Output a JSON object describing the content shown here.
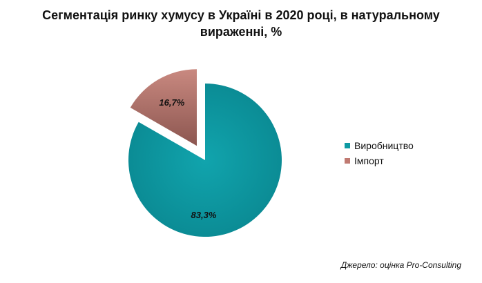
{
  "chart_data": {
    "type": "pie",
    "title": "Сегментація ринку хумусу в Україні в 2020 році, в натуральному вираженні, %",
    "categories": [
      "Виробництво",
      "Імпорт"
    ],
    "values": [
      83.3,
      16.7
    ],
    "data_labels": [
      "83,3%",
      "16,7%"
    ],
    "colors": [
      "#0e9aa3",
      "#c07a72"
    ],
    "exploded": [
      false,
      true
    ],
    "legend_position": "right"
  },
  "source": "Джерело: оцінка Pro-Consulting"
}
